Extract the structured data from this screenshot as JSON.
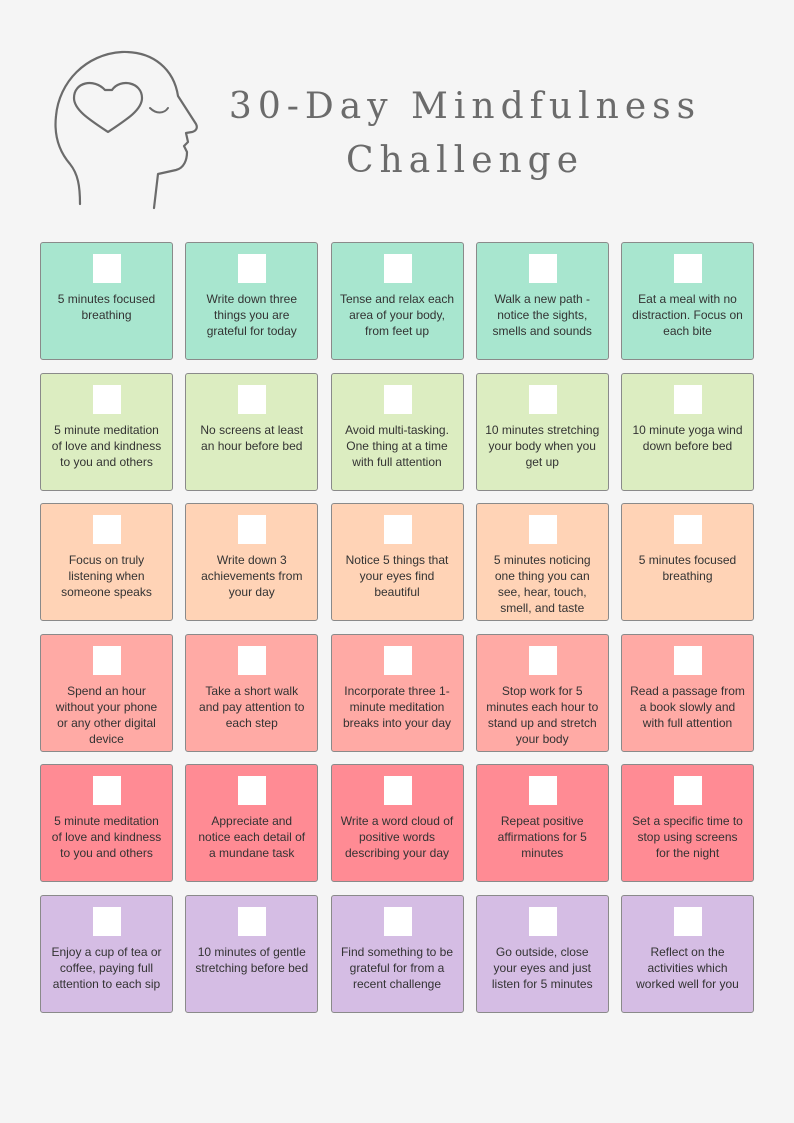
{
  "header": {
    "title_line1": "30-Day Mindfulness",
    "title_line2": "Challenge",
    "icon": "mind-heart-head-icon"
  },
  "colors": {
    "row1": "#a8e6cf",
    "row2": "#dcedc1",
    "row3": "#ffd3b6",
    "row4": "#ffaaa5",
    "row5": "#ff8b94",
    "row6": "#d5bde4"
  },
  "rows": [
    [
      "5 minutes focused breathing",
      "Write down three things you are grateful for today",
      "Tense and relax each area of your body, from feet up",
      "Walk a new path - notice the sights, smells and sounds",
      "Eat a meal with no distraction. Focus on each bite"
    ],
    [
      "5 minute meditation of love and kindness to you and others",
      "No screens at least an hour before bed",
      "Avoid multi-tasking. One thing at a time with full attention",
      "10 minutes stretching your body when you get up",
      "10 minute yoga wind down before bed"
    ],
    [
      "Focus on truly listening when someone speaks",
      "Write down 3 achievements from your day",
      "Notice 5 things that your eyes find beautiful",
      "5 minutes noticing one thing you can see, hear, touch, smell, and taste",
      "5 minutes focused breathing"
    ],
    [
      "Spend an hour without your phone or any other digital device",
      "Take a short walk and pay attention to each step",
      "Incorporate three 1-minute meditation breaks into your day",
      "Stop work for 5 minutes each hour to stand up and stretch your body",
      "Read a passage from a book slowly and with full attention"
    ],
    [
      "5 minute meditation of love and kindness to you and others",
      "Appreciate and notice each detail of a mundane task",
      "Write a word cloud of positive words describing your day",
      "Repeat positive affirmations for 5 minutes",
      "Set a specific time to stop using screens for the night"
    ],
    [
      "Enjoy a cup of tea or coffee, paying full attention to each sip",
      "10 minutes of gentle stretching before bed",
      "Find something to be grateful for from a recent challenge",
      "Go outside, close your eyes and just listen for 5 minutes",
      "Reflect on the activities which worked well for you"
    ]
  ]
}
